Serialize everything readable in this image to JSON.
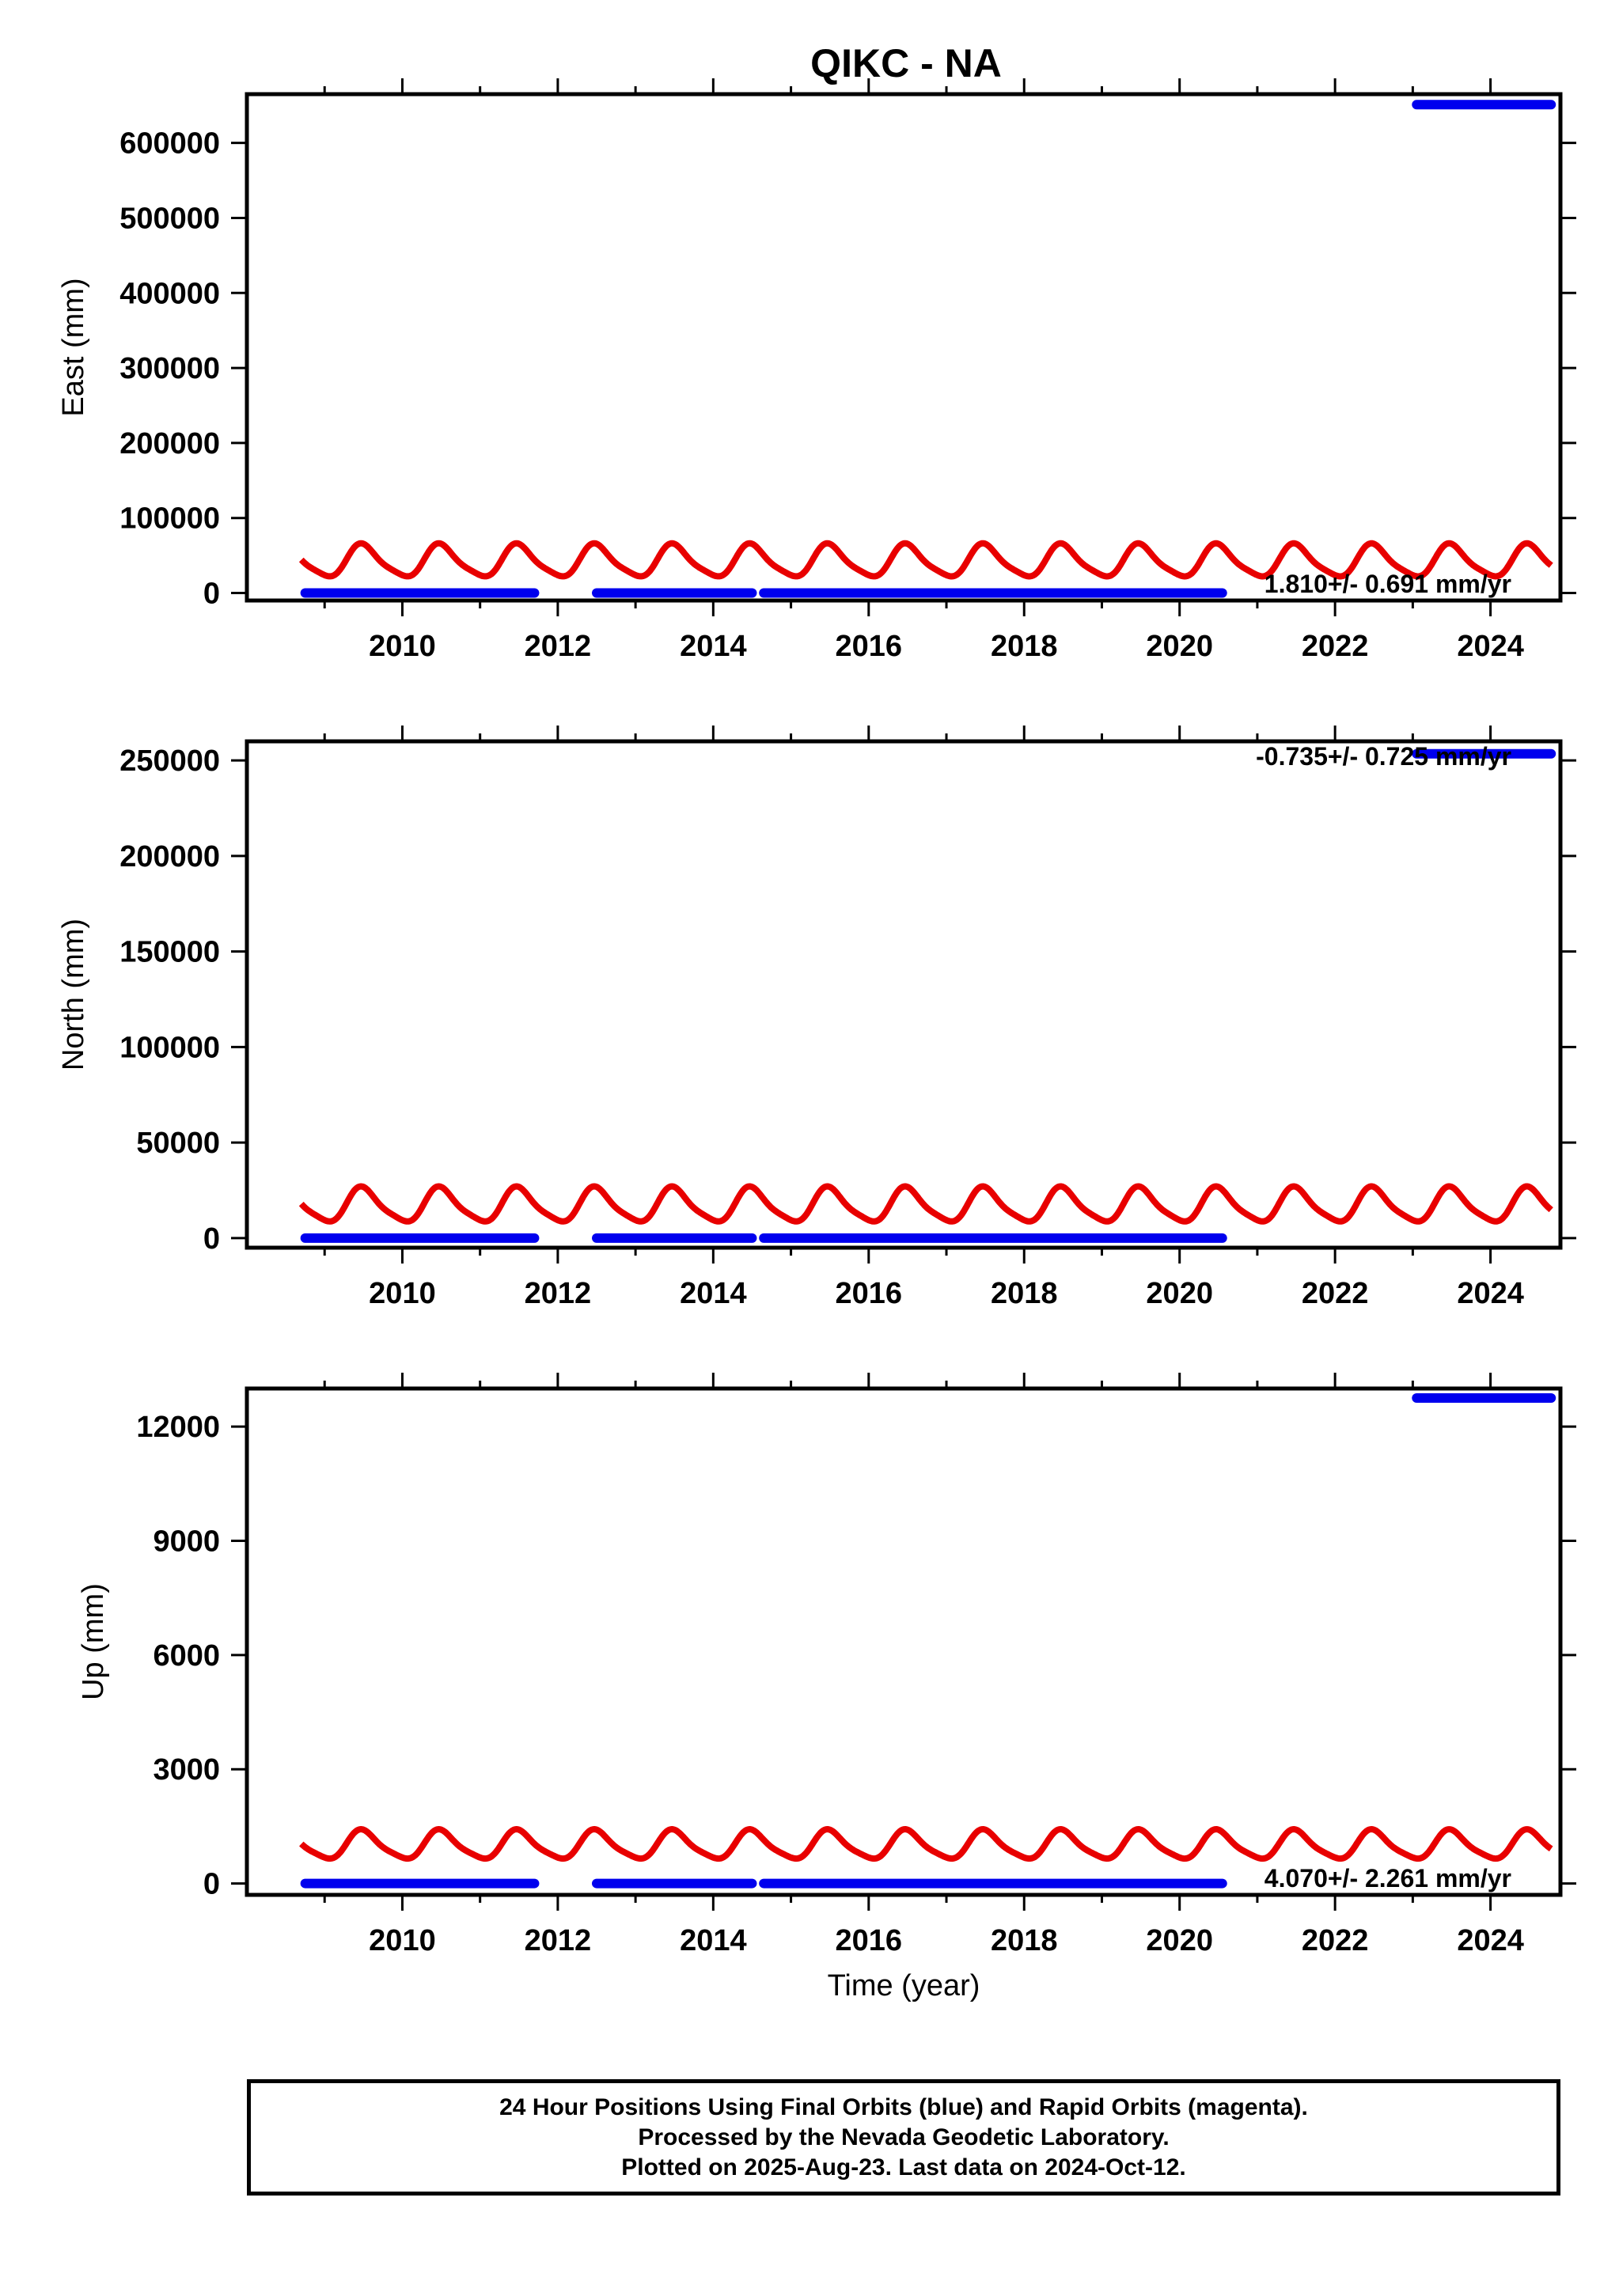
{
  "colors": {
    "final": "#0000ee",
    "rapid": "#e80000",
    "axis": "#000000"
  },
  "chart_data": {
    "title": "QIKC - NA",
    "type": "scatter",
    "xlabel": "Time (year)",
    "x_ticks": [
      2010,
      2012,
      2014,
      2016,
      2018,
      2020,
      2022,
      2024
    ],
    "x_range": [
      2008.0,
      2024.9
    ],
    "panels": [
      {
        "id": "east",
        "ylabel": "East (mm)",
        "ylim": [
          -10000,
          665000
        ],
        "y_ticks": [
          0,
          100000,
          200000,
          300000,
          400000,
          500000,
          600000
        ],
        "rate_label": "1.810+/- 0.691 mm/yr",
        "rate_position": "bottom-right",
        "final_segments": [
          {
            "x": [
              2008.75,
              2011.7
            ],
            "y": 0
          },
          {
            "x": [
              2012.5,
              2014.5
            ],
            "y": 0
          },
          {
            "x": [
              2014.65,
              2020.55
            ],
            "y": 0
          },
          {
            "x": [
              2023.05,
              2024.78
            ],
            "y": 651000
          }
        ],
        "seasonal_model": {
          "x_range": [
            2008.7,
            2024.78
          ],
          "mean": 42000,
          "amplitude": 24000,
          "period_years": 1.0,
          "phase_peak": 2009.5
        }
      },
      {
        "id": "north",
        "ylabel": "North (mm)",
        "ylim": [
          -5000,
          260000
        ],
        "y_ticks": [
          0,
          50000,
          100000,
          150000,
          200000,
          250000
        ],
        "rate_label": "-0.735+/- 0.725 mm/yr",
        "rate_position": "top-right",
        "final_segments": [
          {
            "x": [
              2008.75,
              2011.7
            ],
            "y": 0
          },
          {
            "x": [
              2012.5,
              2014.5
            ],
            "y": 0
          },
          {
            "x": [
              2014.65,
              2020.55
            ],
            "y": 0
          },
          {
            "x": [
              2023.05,
              2024.78
            ],
            "y": 253500
          }
        ],
        "seasonal_model": {
          "x_range": [
            2008.7,
            2024.78
          ],
          "mean": 17000,
          "amplitude": 10000,
          "period_years": 1.0,
          "phase_peak": 2009.5
        }
      },
      {
        "id": "up",
        "ylabel": "Up (mm)",
        "ylim": [
          -300,
          13000
        ],
        "y_ticks": [
          0,
          3000,
          6000,
          9000,
          12000
        ],
        "rate_label": "4.070+/- 2.261 mm/yr",
        "rate_position": "bottom-right",
        "final_segments": [
          {
            "x": [
              2008.75,
              2011.7
            ],
            "y": 0
          },
          {
            "x": [
              2012.5,
              2014.5
            ],
            "y": 0
          },
          {
            "x": [
              2014.65,
              2020.55
            ],
            "y": 0
          },
          {
            "x": [
              2023.05,
              2024.78
            ],
            "y": 12750
          }
        ],
        "seasonal_model": {
          "x_range": [
            2008.7,
            2024.78
          ],
          "mean": 1000,
          "amplitude": 420,
          "period_years": 1.0,
          "phase_peak": 2009.5
        }
      }
    ]
  },
  "caption": {
    "line1": "24 Hour Positions Using Final Orbits (blue) and Rapid Orbits (magenta).",
    "line2": "Processed by the Nevada Geodetic Laboratory.",
    "line3": "Plotted on 2025-Aug-23. Last data on 2024-Oct-12."
  }
}
